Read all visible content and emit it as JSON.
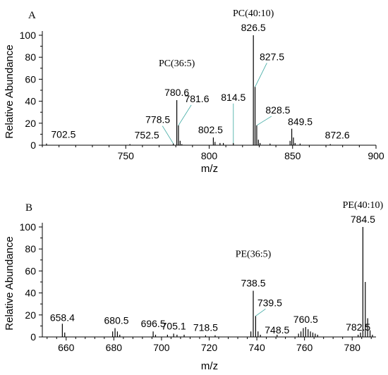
{
  "chart_data": [
    {
      "panel_label": "A",
      "type": "bar",
      "xlabel": "m/z",
      "ylabel": "Relative Abundance",
      "xlim": [
        700,
        900
      ],
      "ylim": [
        0,
        100
      ],
      "xticks": [
        750,
        800,
        850,
        900
      ],
      "yticks": [
        0,
        20,
        40,
        60,
        80,
        100
      ],
      "series": [
        {
          "peaks": [
            {
              "x": 702.5,
              "y": 1.5,
              "label": "702.5"
            },
            {
              "x": 752.5,
              "y": 1,
              "label": "752.5"
            },
            {
              "x": 778.5,
              "y": 1.5,
              "label": "778.5"
            },
            {
              "x": 780.6,
              "y": 41,
              "label": "780.6"
            },
            {
              "x": 781.6,
              "y": 18,
              "label": "781.6"
            },
            {
              "x": 782.6,
              "y": 4
            },
            {
              "x": 783.6,
              "y": 1
            },
            {
              "x": 802.5,
              "y": 7,
              "label": "802.5"
            },
            {
              "x": 803.5,
              "y": 3
            },
            {
              "x": 806.5,
              "y": 2
            },
            {
              "x": 808.5,
              "y": 2
            },
            {
              "x": 814.5,
              "y": 2,
              "label": "814.5"
            },
            {
              "x": 826.5,
              "y": 100,
              "label": "826.5"
            },
            {
              "x": 827.5,
              "y": 53,
              "label": "827.5"
            },
            {
              "x": 828.5,
              "y": 18,
              "label": "828.5"
            },
            {
              "x": 829.5,
              "y": 5
            },
            {
              "x": 830.5,
              "y": 2
            },
            {
              "x": 836.5,
              "y": 1.5
            },
            {
              "x": 848.5,
              "y": 4
            },
            {
              "x": 849.5,
              "y": 15,
              "label": "849.5"
            },
            {
              "x": 850.5,
              "y": 7
            },
            {
              "x": 851.5,
              "y": 2
            },
            {
              "x": 854.5,
              "y": 1.5
            },
            {
              "x": 872.6,
              "y": 1,
              "label": "872.6"
            }
          ]
        }
      ],
      "annotations": [
        {
          "text": "PC(36:5)",
          "x": 780.6
        },
        {
          "text": "PC(40:10)",
          "x": 826.5
        }
      ]
    },
    {
      "panel_label": "B",
      "type": "bar",
      "xlabel": "m/z",
      "ylabel": "Relative Abundance",
      "xlim": [
        650,
        790
      ],
      "ylim": [
        0,
        100
      ],
      "xticks": [
        660,
        680,
        700,
        720,
        740,
        760,
        780
      ],
      "yticks": [
        0,
        20,
        40,
        60,
        80,
        100
      ],
      "series": [
        {
          "peaks": [
            {
              "x": 658.4,
              "y": 12,
              "label": "658.4"
            },
            {
              "x": 659.4,
              "y": 4
            },
            {
              "x": 679.5,
              "y": 5
            },
            {
              "x": 680.5,
              "y": 8,
              "label": "680.5"
            },
            {
              "x": 681.5,
              "y": 5
            },
            {
              "x": 682.5,
              "y": 2
            },
            {
              "x": 696.5,
              "y": 5,
              "label": "696.5"
            },
            {
              "x": 697.5,
              "y": 2
            },
            {
              "x": 702.5,
              "y": 2
            },
            {
              "x": 705.1,
              "y": 3,
              "label": "705.1"
            },
            {
              "x": 706.5,
              "y": 2
            },
            {
              "x": 709.5,
              "y": 2
            },
            {
              "x": 718.5,
              "y": 1.5,
              "label": "718.5"
            },
            {
              "x": 722.5,
              "y": 1.5
            },
            {
              "x": 737.5,
              "y": 5
            },
            {
              "x": 738.5,
              "y": 42,
              "label": "738.5"
            },
            {
              "x": 739.5,
              "y": 19,
              "label": "739.5"
            },
            {
              "x": 740.5,
              "y": 5
            },
            {
              "x": 741.5,
              "y": 2
            },
            {
              "x": 748.5,
              "y": 2,
              "label": "748.5"
            },
            {
              "x": 757.5,
              "y": 3
            },
            {
              "x": 758.5,
              "y": 5
            },
            {
              "x": 759.5,
              "y": 8
            },
            {
              "x": 760.5,
              "y": 9,
              "label": "760.5"
            },
            {
              "x": 761.5,
              "y": 7
            },
            {
              "x": 762.5,
              "y": 5
            },
            {
              "x": 763.5,
              "y": 4
            },
            {
              "x": 764.5,
              "y": 3
            },
            {
              "x": 765.5,
              "y": 2
            },
            {
              "x": 782.5,
              "y": 2,
              "label": "782.5"
            },
            {
              "x": 783.5,
              "y": 4
            },
            {
              "x": 784.5,
              "y": 100,
              "label": "784.5"
            },
            {
              "x": 785.5,
              "y": 50
            },
            {
              "x": 786.5,
              "y": 17
            },
            {
              "x": 787.5,
              "y": 6
            },
            {
              "x": 788.5,
              "y": 2
            }
          ]
        }
      ],
      "annotations": [
        {
          "text": "PE(36:5)",
          "x": 738.5
        },
        {
          "text": "PE(40:10)",
          "x": 784.5
        }
      ]
    }
  ]
}
